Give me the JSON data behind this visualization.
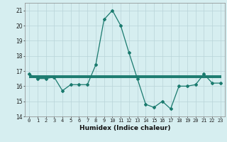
{
  "x": [
    0,
    1,
    2,
    3,
    4,
    5,
    6,
    7,
    8,
    9,
    10,
    11,
    12,
    13,
    14,
    15,
    16,
    17,
    18,
    19,
    20,
    21,
    22,
    23
  ],
  "y_main": [
    16.8,
    16.5,
    16.5,
    16.6,
    15.7,
    16.1,
    16.1,
    16.1,
    17.4,
    20.4,
    21.0,
    20.0,
    18.2,
    16.5,
    14.8,
    14.6,
    15.0,
    14.5,
    16.0,
    16.0,
    16.1,
    16.8,
    16.2,
    16.2
  ],
  "y_line1": [
    16.72,
    16.72,
    16.72,
    16.72,
    16.72,
    16.72,
    16.72,
    16.72,
    16.72,
    16.72,
    16.72,
    16.72,
    16.72,
    16.72,
    16.72,
    16.72,
    16.72,
    16.72,
    16.72,
    16.72,
    16.72,
    16.72,
    16.72,
    16.72
  ],
  "y_line2": [
    16.67,
    16.67,
    16.67,
    16.67,
    16.67,
    16.67,
    16.67,
    16.67,
    16.67,
    16.67,
    16.67,
    16.67,
    16.67,
    16.67,
    16.67,
    16.67,
    16.67,
    16.67,
    16.67,
    16.67,
    16.67,
    16.67,
    16.67,
    16.67
  ],
  "y_line3": [
    16.62,
    16.62,
    16.62,
    16.62,
    16.62,
    16.62,
    16.62,
    16.62,
    16.62,
    16.62,
    16.62,
    16.62,
    16.62,
    16.62,
    16.62,
    16.62,
    16.62,
    16.62,
    16.62,
    16.62,
    16.62,
    16.62,
    16.62,
    16.62
  ],
  "y_line4": [
    16.57,
    16.57,
    16.57,
    16.57,
    16.57,
    16.57,
    16.57,
    16.57,
    16.57,
    16.57,
    16.57,
    16.57,
    16.57,
    16.57,
    16.57,
    16.57,
    16.57,
    16.57,
    16.57,
    16.57,
    16.57,
    16.57,
    16.57,
    16.57
  ],
  "line_color": "#1a7a6e",
  "bg_color": "#d6eef0",
  "grid_color": "#b8d4d8",
  "ylim": [
    14,
    21.5
  ],
  "xlim": [
    -0.5,
    23.5
  ],
  "xlabel": "Humidex (Indice chaleur)",
  "yticks": [
    14,
    15,
    16,
    17,
    18,
    19,
    20,
    21
  ],
  "xticks": [
    0,
    1,
    2,
    3,
    4,
    5,
    6,
    7,
    8,
    9,
    10,
    11,
    12,
    13,
    14,
    15,
    16,
    17,
    18,
    19,
    20,
    21,
    22,
    23
  ],
  "tick_fontsize": 5.0,
  "ytick_fontsize": 5.5,
  "xlabel_fontsize": 6.5
}
